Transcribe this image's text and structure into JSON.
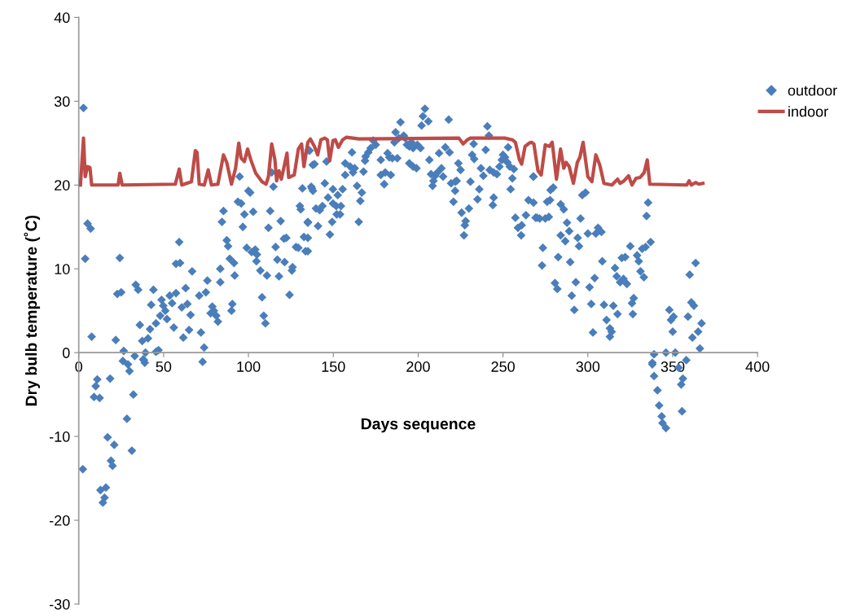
{
  "chart_data": {
    "type": "scatter",
    "xlabel": "Days sequence",
    "ylabel": "Dry bulb temperature (˚C)",
    "xlim": [
      0,
      400
    ],
    "xticks": [
      0,
      50,
      100,
      150,
      200,
      250,
      300,
      350,
      400
    ],
    "ylim": [
      -30,
      40
    ],
    "yticks": [
      -30,
      -20,
      -10,
      0,
      10,
      20,
      30,
      40
    ],
    "grid": false,
    "legend": "right",
    "series": [
      {
        "name": "outdoor",
        "marker": "diamond",
        "color": "#4a7ebb",
        "x": [
          2.8,
          5.2,
          7,
          3.8,
          7.6,
          24.2,
          22.7,
          25,
          21.8,
          26.5,
          26,
          29,
          33,
          36,
          37.4,
          40.8,
          42,
          39.3,
          38.4,
          45.5,
          47,
          33.6,
          35,
          44,
          42.7,
          48.8,
          49.8,
          51,
          48,
          45.5,
          52,
          56,
          53.6,
          55,
          57.3,
          63,
          60.7,
          64,
          65.9,
          65,
          61.6,
          66.8,
          59.2,
          57.3,
          59.7,
          71,
          72,
          73.9,
          73,
          75.8,
          74.9,
          78.7,
          79.6,
          77.7,
          81,
          82,
          83.4,
          83.4,
          89,
          91.5,
          91.9,
          90.5,
          90,
          84.4,
          85.3,
          87.2,
          88,
          93.8,
          95.7,
          94.8,
          97.6,
          96.7,
          100,
          101,
          102.8,
          99,
          101.9,
          104,
          105,
          104.7,
          107,
          110.9,
          108,
          109,
          110,
          111.8,
          112.8,
          113.7,
          114.7,
          116,
          117,
          118,
          119,
          120.9,
          122.3,
          121.3,
          124.2,
          125.6,
          126,
          128,
          129.4,
          130.3,
          130.8,
          131.8,
          132.7,
          133.6,
          135,
          135.5,
          137.4,
          137.9,
          2.4,
          10.9,
          10,
          9,
          12.3,
          18.5,
          32.2,
          28.4,
          17,
          20.9,
          31.3,
          19,
          19.9,
          12.8,
          16,
          15.2,
          14.2,
          29.9,
          38,
          38.9,
          136,
          138.9,
          146,
          157,
          160,
          162.6,
          161.6,
          157,
          167.8,
          137,
          138,
          145,
          149.8,
          146.9,
          152.6,
          155.5,
          139.8,
          142,
          143.6,
          149.8,
          151.7,
          154.5,
          152,
          154,
          135,
          141,
          149.3,
          148,
          135,
          135,
          164,
          166.8,
          165.9,
          165,
          161,
          204,
          202.8,
          206,
          202,
          218,
          189.6,
          240.8,
          241.7,
          186.7,
          188.6,
          191.5,
          192.4,
          186,
          193.4,
          196,
          197,
          194.8,
          199.5,
          201.4,
          173.5,
          175,
          172,
          170.6,
          169,
          168.7,
          178,
          182,
          183,
          184.8,
          187.7,
          194.8,
          197,
          199,
          178,
          180.6,
          183.9,
          180,
          206.6,
          207.6,
          210,
          209,
          208.5,
          211.4,
          213.7,
          214.7,
          212.3,
          216,
          218.5,
          219.4,
          221.8,
          222.7,
          221.8,
          220.8,
          223.7,
          225,
          225.6,
          228,
          227.5,
          227,
          229.9,
          230.8,
          231.8,
          232.7,
          233,
          237,
          238.4,
          236,
          235,
          239.8,
          242.2,
          244.5,
          246.4,
          244.5,
          244,
          247.9,
          249.3,
          251.2,
          252.6,
          254,
          256.4,
          250,
          253,
          255.5,
          254.5,
          257.3,
          258.8,
          260.7,
          261,
          263.5,
          265,
          267.8,
          269.2,
          268,
          279.6,
          278,
          296.7,
          298.6,
          268,
          276,
          277.7,
          284,
          285.8,
          270,
          271.6,
          274.9,
          277,
          295.7,
          287.7,
          289,
          284,
          286.7,
          294,
          294.8,
          300,
          304.7,
          306,
          308,
          273.5,
          273,
          282.5,
          289.6,
          280.6,
          282,
          292.9,
          290.5,
          292,
          335.5,
          334.6,
          337,
          334,
          332,
          325,
          329,
          330,
          331,
          333,
          320,
          322,
          316,
          317,
          319,
          321,
          323,
          327,
          326,
          326.5,
          308.5,
          304,
          301,
          302,
          309.5,
          315,
          317.5,
          311,
          313,
          314,
          313,
          303,
          348,
          349,
          350.5,
          350,
          359,
          361,
          362.5,
          360,
          363.5,
          367,
          365,
          361.6,
          366,
          339,
          346,
          351.5,
          358,
          338,
          338,
          353.5,
          339,
          356,
          355,
          341,
          342,
          355.5,
          343.5,
          344,
          346
        ],
        "values": [
          29.2,
          15.4,
          14.8,
          11.2,
          1.9,
          11.3,
          7,
          7.2,
          1.5,
          0.2,
          -1,
          -1.4,
          -0.4,
          3.3,
          1.4,
          1.7,
          2.8,
          0,
          -0.9,
          0.1,
          0.3,
          8.1,
          7.5,
          7.5,
          5.7,
          6.3,
          5.6,
          5,
          4.4,
          3.5,
          4,
          3,
          6.8,
          5.9,
          7.1,
          7.7,
          5.4,
          5.8,
          4.5,
          2.7,
          1.8,
          9.7,
          13.2,
          10.6,
          10.7,
          6.8,
          2.4,
          0.6,
          -1.1,
          8.6,
          7.2,
          5.5,
          5,
          4.7,
          4.4,
          3.7,
          8.4,
          10,
          11.2,
          10.7,
          9.2,
          5.8,
          5,
          15.6,
          16.9,
          13.4,
          12.7,
          18,
          17.8,
          21,
          16.5,
          15,
          19.3,
          19.1,
          16.8,
          12.5,
          12,
          12.3,
          11.7,
          10.9,
          9.8,
          9.2,
          6.6,
          4.4,
          3.5,
          14.9,
          16.9,
          21.5,
          19.8,
          12.6,
          11.1,
          9.1,
          15.7,
          13.6,
          13.7,
          10.8,
          6.9,
          9.8,
          10.2,
          12.6,
          12.5,
          17.5,
          17.1,
          19.6,
          13.8,
          12.1,
          15.5,
          24.2,
          19.6,
          22.4,
          -13.9,
          -3.2,
          -4,
          -5.3,
          -5.4,
          -3.1,
          -5,
          -7.9,
          -10.1,
          -11,
          -11.7,
          -12.9,
          -13.5,
          -16.4,
          -16.1,
          -17.3,
          -17.9,
          -2.2,
          -0.8,
          -1.2,
          24.1,
          22.5,
          22.8,
          22.6,
          22.2,
          22,
          21.5,
          21.2,
          21.6,
          19.8,
          19.3,
          20.2,
          19.5,
          18.5,
          18.8,
          19.5,
          17.2,
          17,
          17.5,
          17.8,
          17.5,
          17.5,
          16.5,
          16.5,
          15.6,
          15.1,
          15.6,
          14.1,
          13.7,
          12.1,
          19.9,
          19.1,
          18.1,
          15.6,
          23.9,
          29.1,
          28.2,
          27.6,
          27.1,
          27.8,
          27.5,
          27,
          25.9,
          26.3,
          25.6,
          25.9,
          25.6,
          25.1,
          24.8,
          25.1,
          24.4,
          24.6,
          24.8,
          24.4,
          25.3,
          24.8,
          24.4,
          23.9,
          23.4,
          22.9,
          23,
          23.8,
          23.3,
          23.2,
          23.2,
          22.6,
          22.2,
          22,
          21.2,
          21.5,
          21.2,
          20.1,
          23,
          21.3,
          21.1,
          20.5,
          19.9,
          21.5,
          22,
          21,
          23.8,
          24.5,
          23.9,
          20.2,
          20.4,
          20.5,
          19.3,
          18,
          22.6,
          21.8,
          16.7,
          15.7,
          15.2,
          14,
          17.2,
          20.4,
          23.6,
          24.9,
          23.1,
          22,
          21.1,
          19.5,
          18.3,
          24.2,
          21.8,
          21.5,
          21.3,
          18.5,
          17.6,
          22.2,
          23,
          23.3,
          22.7,
          22.2,
          21.9,
          23.6,
          24.5,
          20.8,
          19.5,
          16.1,
          14.9,
          14,
          15.2,
          16.4,
          18.2,
          21,
          16.1,
          21,
          19.7,
          19.4,
          18.8,
          19.1,
          17.9,
          18,
          18.2,
          17.7,
          17.1,
          16.1,
          16,
          16,
          16.2,
          16,
          15.5,
          14.5,
          14,
          13.3,
          13.7,
          12.7,
          14.2,
          14.2,
          14.9,
          14.4,
          12.5,
          10.4,
          11.4,
          10.8,
          8.3,
          7.6,
          8.4,
          6.8,
          5.1,
          17.9,
          16.3,
          13.2,
          12.6,
          12.4,
          12.7,
          11.6,
          10.9,
          9.7,
          9,
          11.3,
          11.4,
          10.1,
          9.1,
          8.4,
          8.8,
          8.2,
          6.5,
          5.9,
          4.6,
          10.9,
          8.9,
          7.8,
          5.8,
          5.7,
          5.6,
          4.6,
          3.9,
          2.9,
          2.5,
          1.9,
          2.4,
          5.1,
          3.9,
          4.3,
          2.5,
          4.3,
          6,
          5.6,
          9.3,
          10.7,
          3.5,
          2.5,
          1.8,
          0.5,
          -0.2,
          0,
          0,
          -0.9,
          -1.2,
          -1.4,
          -1.8,
          -2.8,
          -3.1,
          -3.8,
          -4.5,
          -6.3,
          -7,
          -7.6,
          -8.4,
          -9
        ]
      },
      {
        "name": "indoor",
        "type": "line",
        "marker": "none",
        "line_style": "solid",
        "color": "#be4b48",
        "x": [
          1,
          2.8,
          3.8,
          5.2,
          6.6,
          7.6,
          23.2,
          24.2,
          25.6,
          56.9,
          59.2,
          60.7,
          66.4,
          68.7,
          69.7,
          71,
          74,
          76.3,
          78.2,
          82,
          85.3,
          87.2,
          90,
          92.4,
          94.3,
          95.7,
          97.6,
          99.5,
          101.4,
          104.3,
          108,
          110.4,
          111.8,
          113.7,
          115.6,
          116.6,
          118,
          119.4,
          122.7,
          123.7,
          127,
          129.4,
          131.3,
          132.7,
          135,
          136.5,
          138.9,
          140.8,
          142.7,
          145,
          146.5,
          147.9,
          149.8,
          151.2,
          153,
          155.5,
          157.8,
          165,
          224,
          226.5,
          229,
          230.8,
          251,
          255.5,
          257.3,
          259.7,
          261,
          263,
          265.4,
          266.8,
          268.2,
          270.6,
          272.5,
          274.9,
          277.3,
          279,
          281.5,
          283.9,
          285.8,
          287.2,
          289,
          291.5,
          293.8,
          295.3,
          297.2,
          300,
          302.4,
          304.7,
          307,
          309.5,
          314.2,
          317.5,
          319,
          321.3,
          324,
          326,
          328.4,
          330.8,
          333.2,
          335,
          336.5,
          358.3,
          359.7,
          361,
          363.5,
          365.4,
          367.8
        ],
        "values": [
          20,
          25.6,
          21,
          22.2,
          22.1,
          20,
          20,
          21.4,
          20,
          20.1,
          21.9,
          20,
          20.4,
          24.1,
          23.9,
          20.1,
          20,
          21.8,
          20,
          20.1,
          23.6,
          22.7,
          20.1,
          22,
          25,
          23.2,
          22.8,
          24.3,
          23,
          21.4,
          20.4,
          20.1,
          21,
          24.9,
          23,
          20.5,
          21.7,
          20.7,
          23.8,
          20.9,
          21.2,
          24.3,
          24.9,
          22.2,
          25.1,
          25.5,
          24.6,
          23.6,
          25.4,
          25.6,
          25.4,
          22.9,
          25.3,
          25.4,
          24.5,
          25.4,
          25.7,
          25.5,
          25.6,
          24.9,
          25.4,
          25.6,
          25.6,
          25.4,
          25.1,
          23,
          22.5,
          24.6,
          25,
          25.1,
          24.9,
          21.7,
          21.2,
          24.8,
          24.6,
          25.1,
          20.7,
          24.3,
          22,
          22.7,
          22.2,
          20.2,
          22.7,
          23.3,
          25.1,
          21,
          20.4,
          23.6,
          22.4,
          20.2,
          20,
          20.7,
          20.2,
          20.5,
          21.1,
          20,
          20.8,
          20.9,
          21.5,
          23,
          20.1,
          20,
          20.5,
          20,
          20.3,
          20.1,
          20.2
        ]
      }
    ]
  }
}
